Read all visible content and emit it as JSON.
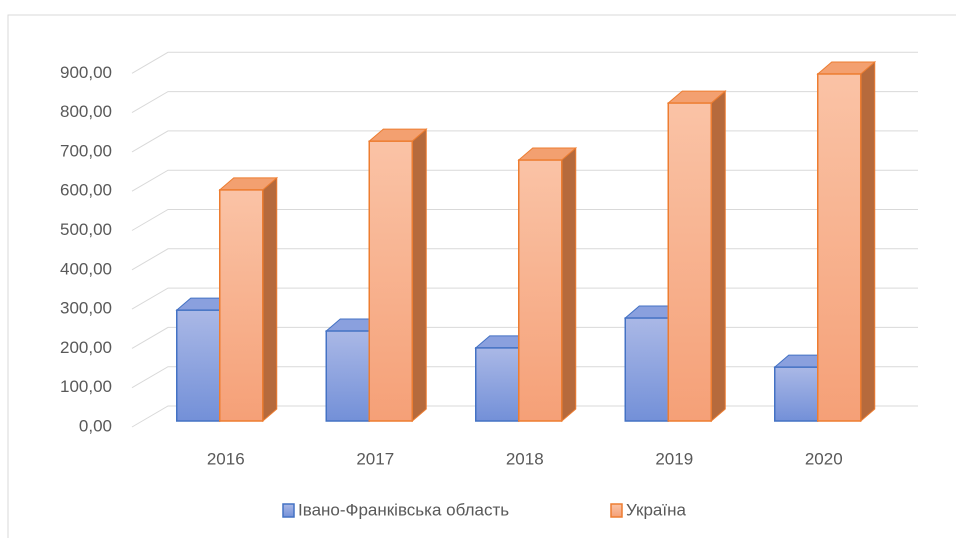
{
  "chart_data": {
    "type": "bar3d",
    "categories": [
      "2016",
      "2017",
      "2018",
      "2019",
      "2020"
    ],
    "series": [
      {
        "name": "Івано-Франківська область",
        "color": "#4472c4",
        "values": [
          282,
          229,
          186,
          262,
          137
        ]
      },
      {
        "name": "Україна",
        "color": "#ed7d31",
        "values": [
          588,
          712,
          664,
          809,
          883
        ]
      }
    ],
    "ylim": [
      0,
      1000
    ],
    "yticks": [
      {
        "value": 0,
        "label": "0,00"
      },
      {
        "value": 100,
        "label": "100,00"
      },
      {
        "value": 200,
        "label": "200,00"
      },
      {
        "value": 300,
        "label": "300,00"
      },
      {
        "value": 400,
        "label": "400,00"
      },
      {
        "value": 500,
        "label": "500,00"
      },
      {
        "value": 600,
        "label": "600,00"
      },
      {
        "value": 700,
        "label": "700,00"
      },
      {
        "value": 800,
        "label": "800,00"
      },
      {
        "value": 900,
        "label": "900,00"
      }
    ],
    "grid": true,
    "legend": "bottom"
  }
}
